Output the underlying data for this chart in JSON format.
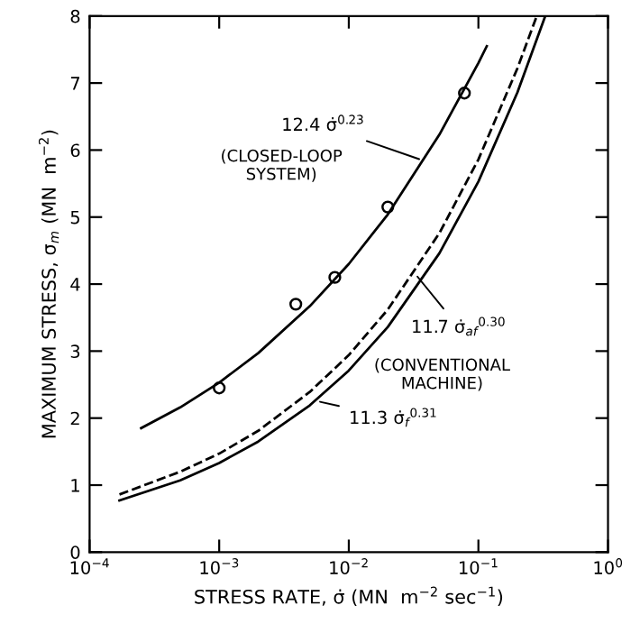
{
  "chart_data": {
    "type": "line",
    "log": "x",
    "xlabel": "STRESS RATE, σ̇ (MN  m$^{−2}$ sec$^{−1}$)",
    "ylabel": "MAXIMUM STRESS, σ$_{m}$ (MN  m$^{−2}$)",
    "xlim": [
      0.0001,
      1
    ],
    "ylim": [
      0,
      8
    ],
    "xticks": [
      {
        "value": 0.0001,
        "label": "10$^{−4}$"
      },
      {
        "value": 0.001,
        "label": "10$^{−3}$"
      },
      {
        "value": 0.01,
        "label": "10$^{−2}$"
      },
      {
        "value": 0.1,
        "label": "10$^{−1}$"
      },
      {
        "value": 1,
        "label": "10$^{0}$"
      }
    ],
    "yticks": [
      0,
      1,
      2,
      3,
      4,
      5,
      6,
      7,
      8
    ],
    "grid": false,
    "series": [
      {
        "color": "#000000",
        "line_style": "solid",
        "x": [
          0.00025,
          0.0005,
          0.001,
          0.002,
          0.005,
          0.01,
          0.02,
          0.05,
          0.1,
          0.116
        ],
        "values": [
          1.85,
          2.16,
          2.53,
          2.97,
          3.67,
          4.3,
          5.04,
          6.23,
          7.3,
          7.55
        ]
      },
      {
        "color": "#000000",
        "line_style": "dashed",
        "x": [
          0.00017,
          0.0005,
          0.001,
          0.002,
          0.005,
          0.01,
          0.02,
          0.05,
          0.1,
          0.2,
          0.282
        ],
        "values": [
          0.86,
          1.2,
          1.47,
          1.81,
          2.39,
          2.94,
          3.62,
          4.76,
          5.86,
          7.22,
          8.0
        ]
      },
      {
        "color": "#000000",
        "line_style": "solid",
        "x": [
          0.00017,
          0.0005,
          0.001,
          0.002,
          0.005,
          0.01,
          0.02,
          0.05,
          0.1,
          0.2,
          0.328
        ],
        "values": [
          0.77,
          1.07,
          1.33,
          1.65,
          2.19,
          2.71,
          3.36,
          4.46,
          5.53,
          6.86,
          8.0
        ]
      },
      {
        "type": "scatter",
        "color": "#000000",
        "marker": "circle",
        "x": [
          0.001,
          0.0039,
          0.0078,
          0.02,
          0.078
        ],
        "values": [
          2.45,
          3.7,
          4.1,
          5.15,
          6.85
        ]
      }
    ],
    "annotations": [
      {
        "text": "12.4 σ̇$^{0.23}$",
        "x": 0.038,
        "y": 5.84
      },
      "(CLOSED-LOOP\nSYSTEM)",
      {
        "text": "11.7 σ̇$_{af}$$^{0.30}$",
        "x": 0.032,
        "y": 4.17
      },
      "(CONVENTIONAL\nMACHINE)",
      {
        "text": "11.3 σ̇$_{f}$$^{0.31}$",
        "x": 0.0055,
        "y": 2.26
      }
    ]
  }
}
